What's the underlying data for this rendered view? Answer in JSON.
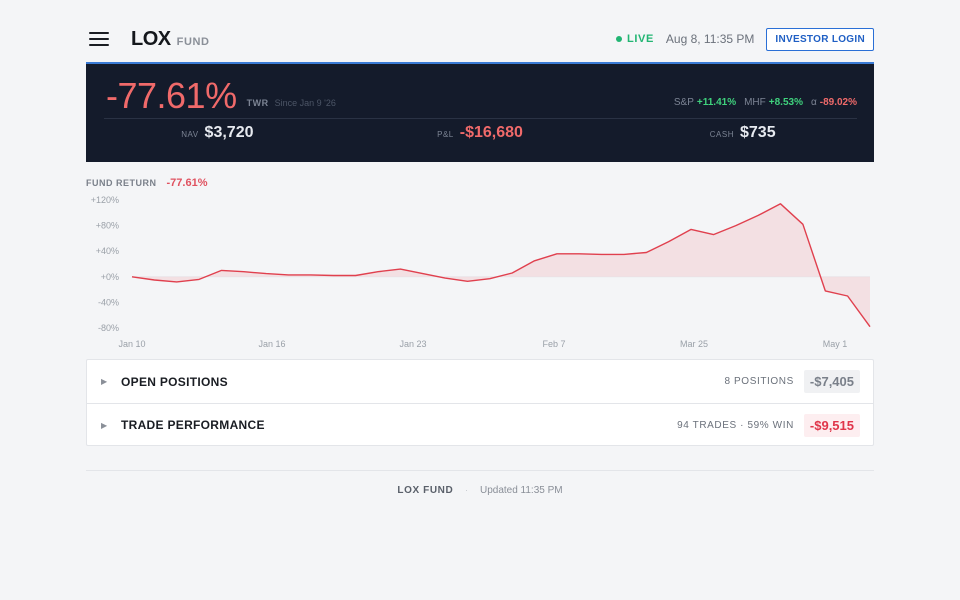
{
  "header": {
    "brand": "LOX",
    "brand_sub": "FUND",
    "live": "LIVE",
    "datetime": "Aug 8, 11:35 PM",
    "login_label": "INVESTOR LOGIN",
    "icons": {
      "menu": "hamburger-icon",
      "live": "status-dot-icon"
    }
  },
  "hero": {
    "return": "-77.61%",
    "twr_label": "TWR",
    "since": "Since Jan 9 '26",
    "benchmarks": [
      {
        "label": "S&P",
        "value": "+11.41%"
      },
      {
        "label": "MHF",
        "value": "+8.53%"
      },
      {
        "label": "α",
        "value": "-89.02%"
      }
    ],
    "stats": [
      {
        "label": "NAV",
        "value": "$3,720"
      },
      {
        "label": "P&L",
        "value": "-$16,680"
      },
      {
        "label": "CASH",
        "value": "$735"
      }
    ]
  },
  "chart": {
    "title": "FUND RETURN",
    "value": "-77.61%"
  },
  "chart_data": {
    "type": "area",
    "x_ticks": [
      "Jan 10",
      "Jan 16",
      "Jan 23",
      "Feb 7",
      "Mar 25",
      "May 1"
    ],
    "y_ticks": [
      "+120%",
      "+80%",
      "+40%",
      "+0%",
      "-40%",
      "-80%"
    ],
    "ylim": [
      -80,
      120
    ],
    "grid": false,
    "line_color": "#e0404e",
    "fill_color": "#f2d7da",
    "series": [
      {
        "values": [
          0,
          -5,
          -8,
          -4,
          10,
          8,
          5,
          3,
          3,
          2,
          2,
          8,
          12,
          5,
          -2,
          -7,
          -3,
          6,
          25,
          36,
          36,
          35,
          35,
          38,
          55,
          74,
          66,
          80,
          96,
          114,
          82,
          -22,
          -30,
          -78
        ]
      }
    ]
  },
  "panels": [
    {
      "label": "OPEN POSITIONS",
      "meta": "8 POSITIONS",
      "value": "-$7,405",
      "style": "muted"
    },
    {
      "label": "TRADE PERFORMANCE",
      "meta": "94 TRADES · 59% WIN",
      "value": "-$9,515",
      "style": "neg"
    }
  ],
  "footer": {
    "name": "LOX FUND",
    "separator": "·",
    "updated": "Updated 11:35 PM"
  }
}
